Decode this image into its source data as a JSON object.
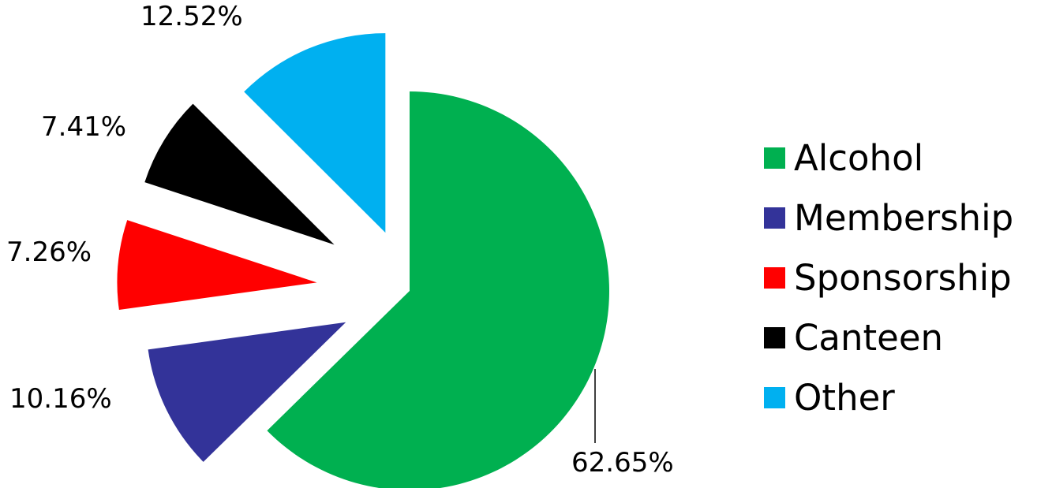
{
  "chart_data": {
    "type": "pie",
    "exploded": true,
    "categories": [
      "Alcohol",
      "Membership",
      "Sponsorship",
      "Canteen",
      "Other"
    ],
    "values": [
      62.65,
      10.16,
      7.26,
      7.41,
      12.52
    ],
    "data_labels": [
      "62.65%",
      "10.16%",
      "7.26%",
      "7.41%",
      "12.52%"
    ],
    "colors": [
      "#00b050",
      "#333399",
      "#ff0000",
      "#000000",
      "#00b0f0"
    ],
    "legend_position": "right"
  }
}
